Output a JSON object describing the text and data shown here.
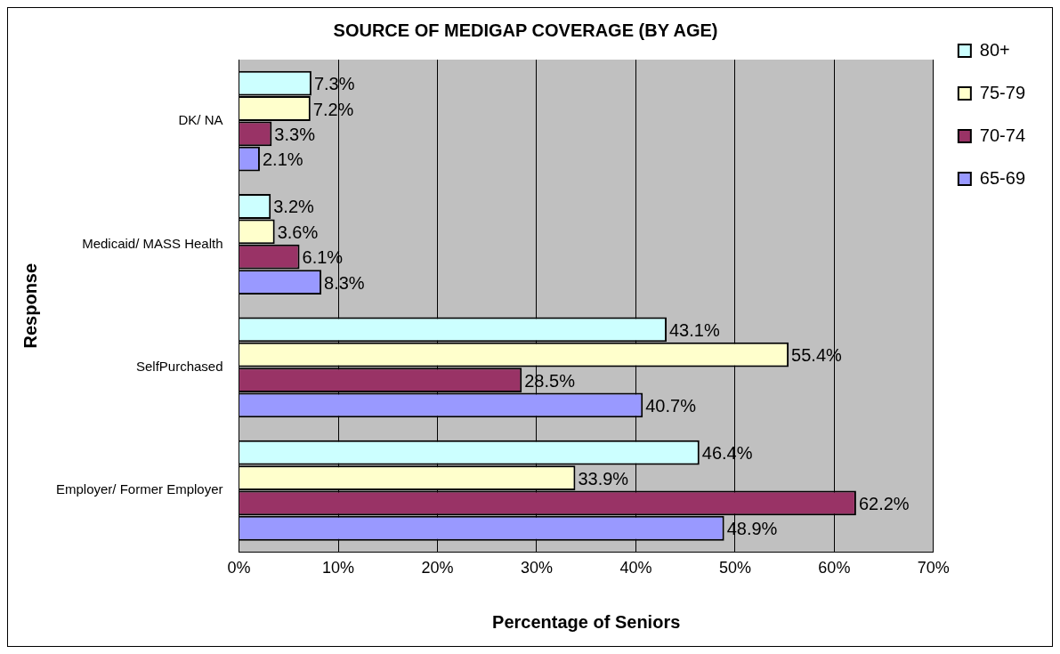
{
  "chart_data": {
    "type": "bar",
    "orientation": "horizontal",
    "title": "SOURCE OF MEDIGAP COVERAGE (BY AGE)",
    "xlabel": "Percentage of Seniors",
    "ylabel": "Response",
    "categories": [
      "DK/ NA",
      "Medicaid/ MASS Health",
      "SelfPurchased",
      "Employer/ Former Employer"
    ],
    "series": [
      {
        "name": "80+",
        "color": "#ccffff",
        "values": [
          7.3,
          3.2,
          43.1,
          46.4
        ],
        "value_labels": [
          "7.3%",
          "3.2%",
          "43.1%",
          "46.4%"
        ]
      },
      {
        "name": "75-79",
        "color": "#ffffcc",
        "values": [
          7.2,
          3.6,
          55.4,
          33.9
        ],
        "value_labels": [
          "7.2%",
          "3.6%",
          "55.4%",
          "33.9%"
        ]
      },
      {
        "name": "70-74",
        "color": "#993366",
        "values": [
          3.3,
          6.1,
          28.5,
          62.2
        ],
        "value_labels": [
          "3.3%",
          "6.1%",
          "28.5%",
          "62.2%"
        ]
      },
      {
        "name": "65-69",
        "color": "#9999ff",
        "values": [
          2.1,
          8.3,
          40.7,
          48.9
        ],
        "value_labels": [
          "2.1%",
          "8.3%",
          "40.7%",
          "48.9%"
        ]
      }
    ],
    "xlim": [
      0,
      70
    ],
    "xticks": [
      {
        "value": 0,
        "label": "0%"
      },
      {
        "value": 10,
        "label": "10%"
      },
      {
        "value": 20,
        "label": "20%"
      },
      {
        "value": 30,
        "label": "30%"
      },
      {
        "value": 40,
        "label": "40%"
      },
      {
        "value": 50,
        "label": "50%"
      },
      {
        "value": 60,
        "label": "60%"
      },
      {
        "value": 70,
        "label": "70%"
      }
    ],
    "grid": "x",
    "legend": "right"
  }
}
